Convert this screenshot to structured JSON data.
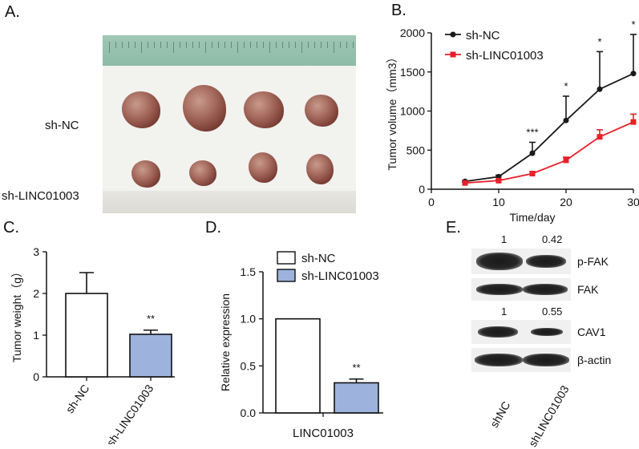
{
  "panels": {
    "a": {
      "label": "A.",
      "rows": [
        "sh-NC",
        "sh-LINC01003"
      ]
    },
    "b": {
      "label": "B."
    },
    "c": {
      "label": "C."
    },
    "d": {
      "label": "D."
    },
    "e": {
      "label": "E.",
      "values_top": [
        "1",
        "0.42"
      ],
      "values_mid": [
        "1",
        "0.55"
      ],
      "bands": [
        "p-FAK",
        "FAK",
        "CAV1",
        "β-actin"
      ],
      "lanes": [
        "shNC",
        "shLINC01003"
      ]
    }
  },
  "chart_data": [
    {
      "panel": "B",
      "type": "line",
      "xlabel": "Time/day",
      "ylabel": "Tumor volume（mm3）",
      "x": [
        5,
        10,
        15,
        20,
        25,
        30
      ],
      "xlim": [
        0,
        30
      ],
      "ylim": [
        0,
        2000
      ],
      "xticks": [
        0,
        10,
        20,
        30
      ],
      "yticks": [
        0,
        500,
        1000,
        1500,
        2000
      ],
      "legend_position": "top-left",
      "series": [
        {
          "name": "sh-NC",
          "color": "#1a1a1a",
          "marker": "circle",
          "values": [
            100,
            160,
            460,
            880,
            1280,
            1480
          ],
          "errors": [
            10,
            20,
            140,
            310,
            480,
            500
          ]
        },
        {
          "name": "sh-LINC01003",
          "color": "#e8202a",
          "marker": "square",
          "values": [
            80,
            110,
            200,
            370,
            670,
            860
          ],
          "errors": [
            10,
            15,
            25,
            40,
            90,
            100
          ]
        }
      ],
      "annotations": [
        {
          "x": 15,
          "text": "***"
        },
        {
          "x": 20,
          "text": "*"
        },
        {
          "x": 25,
          "text": "*"
        },
        {
          "x": 30,
          "text": "*"
        }
      ]
    },
    {
      "panel": "C",
      "type": "bar",
      "ylabel": "Tumor weight（g）",
      "categories": [
        "sh-NC",
        "sh-LINC01003"
      ],
      "values": [
        2.0,
        1.02
      ],
      "errors": [
        0.5,
        0.1
      ],
      "colors": [
        "#ffffff",
        "#9db3de"
      ],
      "ylim": [
        0,
        3
      ],
      "yticks": [
        0,
        1,
        2,
        3
      ],
      "annotations": [
        {
          "category": "sh-LINC01003",
          "text": "**"
        }
      ]
    },
    {
      "panel": "D",
      "type": "bar",
      "ylabel": "Relative expression",
      "xlabel": "LINC01003",
      "series": [
        {
          "name": "sh-NC",
          "color": "#ffffff",
          "value": 1.0,
          "error": 0
        },
        {
          "name": "sh-LINC01003",
          "color": "#9db3de",
          "value": 0.32,
          "error": 0.04
        }
      ],
      "ylim": [
        0,
        1.5
      ],
      "yticks": [
        "0.0",
        "0.5",
        "1.0",
        "1.5"
      ],
      "legend_position": "top",
      "annotations": [
        {
          "series": "sh-LINC01003",
          "text": "**"
        }
      ]
    }
  ]
}
